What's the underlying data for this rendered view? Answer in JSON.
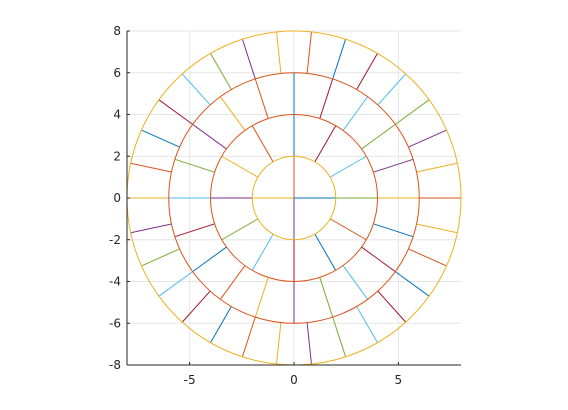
{
  "chart_data": {
    "type": "line",
    "title": "",
    "xlabel": "",
    "ylabel": "",
    "xlim": [
      -8,
      8
    ],
    "ylim": [
      -8,
      8
    ],
    "grid": true,
    "x_ticks": [
      -5,
      0,
      5
    ],
    "x_tick_labels": [
      "-5",
      "0",
      "5"
    ],
    "y_ticks": [
      -8,
      -6,
      -4,
      -2,
      0,
      2,
      4,
      6,
      8
    ],
    "y_tick_labels": [
      "-8",
      "-6",
      "-4",
      "-2",
      "0",
      "2",
      "4",
      "6",
      "8"
    ],
    "circles": [
      {
        "radius": 2,
        "color": "#EDB120"
      },
      {
        "radius": 4,
        "color": "#D95319"
      },
      {
        "radius": 6,
        "color": "#D95319"
      },
      {
        "radius": 8,
        "color": "#EDB120"
      }
    ],
    "rings": [
      {
        "r_inner": 0,
        "r_outer": 2,
        "angles_deg": [
          0,
          90,
          180,
          270
        ]
      },
      {
        "r_inner": 2,
        "r_outer": 4,
        "angles_deg": [
          0,
          30,
          60,
          90,
          120,
          150,
          180,
          210,
          240,
          270,
          300,
          330
        ]
      },
      {
        "r_inner": 4,
        "r_outer": 6,
        "angles_deg": [
          0,
          18,
          36,
          54,
          72,
          90,
          108,
          126,
          144,
          162,
          180,
          198,
          216,
          234,
          252,
          270,
          288,
          306,
          324,
          342
        ]
      },
      {
        "r_inner": 6,
        "r_outer": 8,
        "angles_deg": [
          0,
          12,
          24,
          36,
          48,
          60,
          72,
          84,
          96,
          108,
          120,
          132,
          144,
          156,
          168,
          180,
          192,
          204,
          216,
          228,
          240,
          252,
          264,
          276,
          288,
          300,
          312,
          324,
          336,
          348
        ]
      }
    ],
    "color_order": [
      "#0072BD",
      "#D95319",
      "#EDB120",
      "#7E2F8E",
      "#77AC30",
      "#4DBEEE",
      "#A2142F"
    ],
    "grid_color": "#e6e6e6",
    "axis_color": "#262626"
  }
}
